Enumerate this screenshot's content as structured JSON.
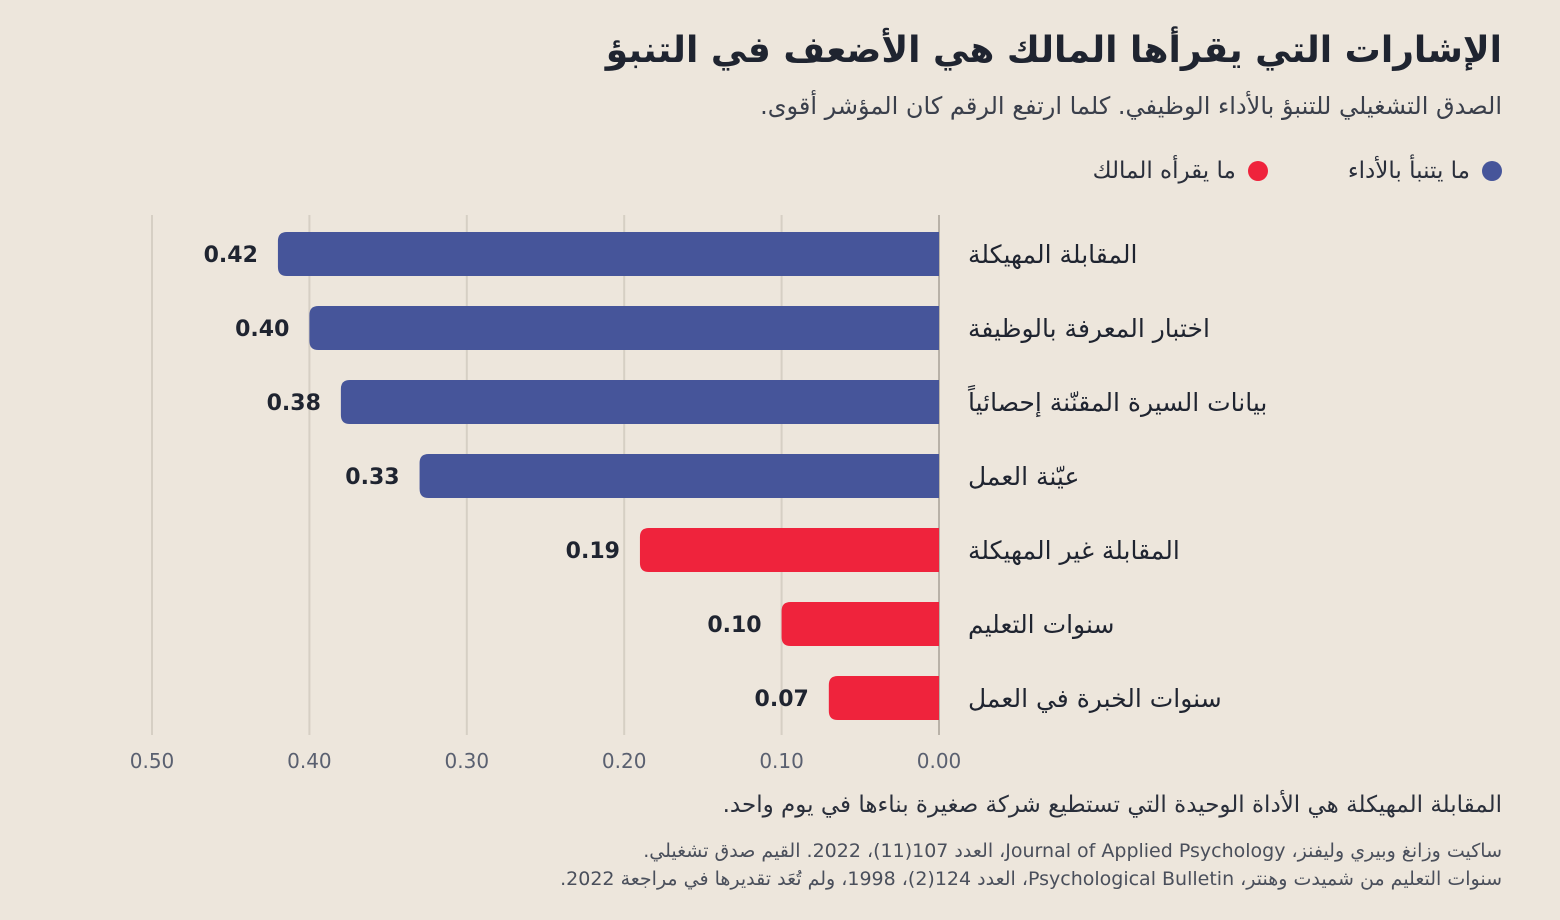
{
  "header": {
    "title": "الإشارات التي يقرأها المالك هي الأضعف في التنبؤ",
    "subtitle": "الصدق التشغيلي للتنبؤ بالأداء الوظيفي. كلما ارتفع الرقم كان المؤشر أقوى."
  },
  "legend": {
    "items": [
      {
        "label": "ما يتنبأ بالأداء",
        "color": "#46559a"
      },
      {
        "label": "ما يقرأه المالك",
        "color": "#ef233c"
      }
    ]
  },
  "chart_data": {
    "type": "bar",
    "orientation": "horizontal",
    "direction": "right-to-left",
    "categories": [
      "المقابلة المهيكلة",
      "اختبار المعرفة بالوظيفة",
      "بيانات السيرة المقنّنة إحصائياً",
      "عيّنة العمل",
      "المقابلة غير المهيكلة",
      "سنوات التعليم",
      "سنوات الخبرة في العمل"
    ],
    "values": [
      0.42,
      0.4,
      0.38,
      0.33,
      0.19,
      0.1,
      0.07
    ],
    "value_labels": [
      "0.42",
      "0.40",
      "0.38",
      "0.33",
      "0.19",
      "0.10",
      "0.07"
    ],
    "groups": [
      "predicts",
      "predicts",
      "predicts",
      "predicts",
      "owner",
      "owner",
      "owner"
    ],
    "group_colors": {
      "predicts": "#46559a",
      "owner": "#ef233c"
    },
    "xlim": [
      0,
      0.5
    ],
    "ticks": [
      0.0,
      0.1,
      0.2,
      0.3,
      0.4,
      0.5
    ],
    "tick_labels": [
      "0.00",
      "0.10",
      "0.20",
      "0.30",
      "0.40",
      "0.50"
    ],
    "grid": true,
    "legend_position": "top-right"
  },
  "footer": {
    "note": "المقابلة المهيكلة هي الأداة الوحيدة التي تستطيع شركة صغيرة بناءها في يوم واحد.",
    "source1": "ساكيت وزانغ وبيري وليفنز، Journal of Applied Psychology، العدد 107(11)، 2022. القيم صدق تشغيلي.",
    "source2": "سنوات التعليم من شميدت وهنتر، Psychological Bulletin، العدد 124(2)، 1998، ولم تُعَد تقديرها في مراجعة 2022."
  }
}
